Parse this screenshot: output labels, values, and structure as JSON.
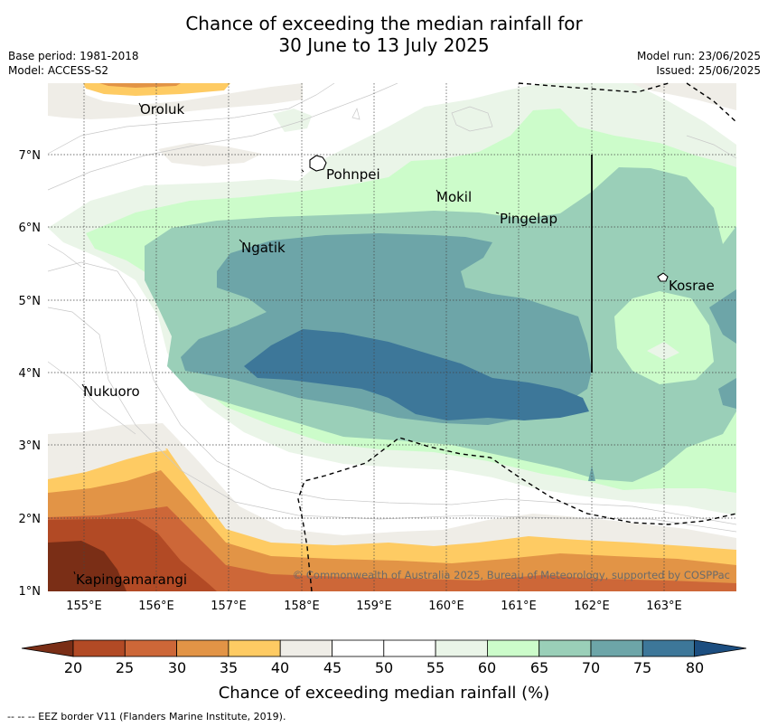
{
  "title": {
    "line1": "Chance of exceeding the median rainfall for",
    "line2": "30 June to 13 July 2025"
  },
  "meta": {
    "base_period": "Base period: 1981-2018",
    "model": "Model: ACCESS-S2",
    "model_run": "Model run: 23/06/2025",
    "issued": "Issued: 25/06/2025"
  },
  "map": {
    "lon_labels": [
      "155°E",
      "156°E",
      "157°E",
      "158°E",
      "159°E",
      "160°E",
      "161°E",
      "162°E",
      "163°E"
    ],
    "lat_labels": [
      "7°N",
      "6°N",
      "5°N",
      "4°N",
      "3°N",
      "2°N",
      "1°N"
    ],
    "places": {
      "oroluk": "Oroluk",
      "pohnpei": "Pohnpei",
      "mokil": "Mokil",
      "pingelap": "Pingelap",
      "ngatik": "Ngatik",
      "kosrae": "Kosrae",
      "nukuoro": "Nukuoro",
      "kapingamarangi": "Kapingamarangi"
    },
    "copyright": "© Commonwealth of Australia 2025, Bureau of Meteorology, supported by COSPPac"
  },
  "colorbar": {
    "title": "Chance of exceeding median rainfall (%)",
    "ticks": [
      "20",
      "25",
      "30",
      "35",
      "40",
      "45",
      "50",
      "55",
      "60",
      "65",
      "70",
      "75",
      "80"
    ],
    "colors": [
      "#7a2e16",
      "#b24a25",
      "#cd6738",
      "#e29446",
      "#fecb63",
      "#efede7",
      "#ffffff",
      "#ffffff",
      "#eaf5e8",
      "#ccfcca",
      "#9acfb8",
      "#6da5a8",
      "#3d7799",
      "#1c4e80"
    ]
  },
  "footnote": "--  --  -- EEZ border V11 (Flanders Marine Institute, 2019)."
}
